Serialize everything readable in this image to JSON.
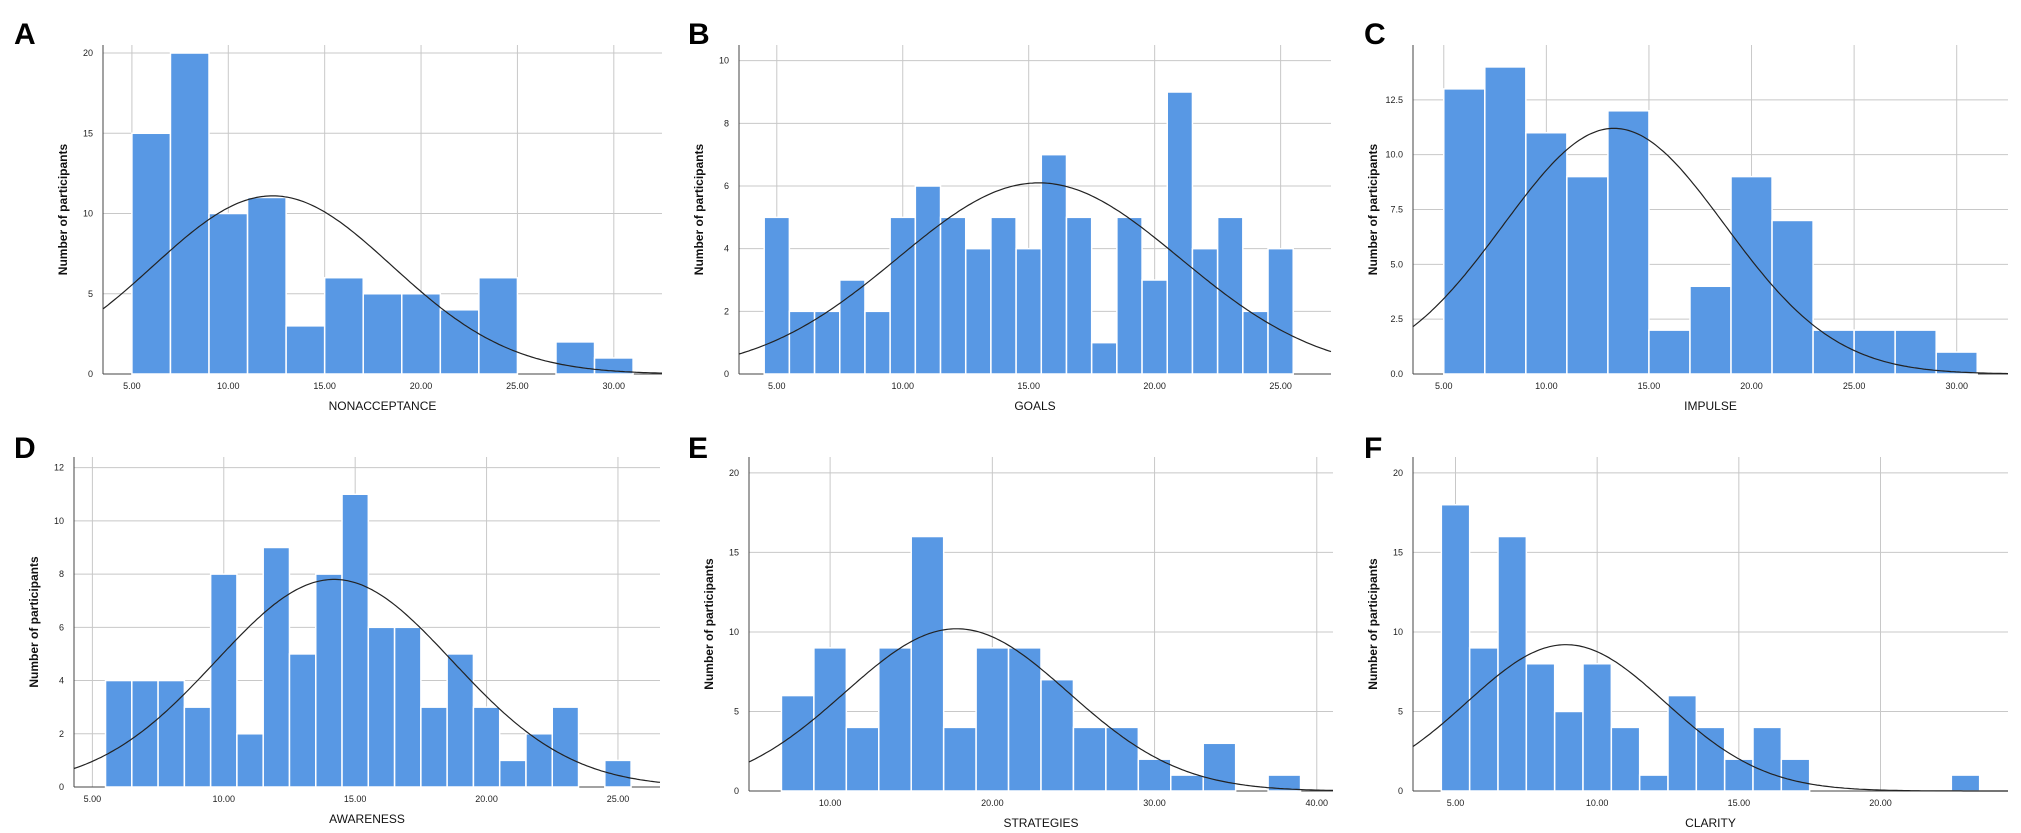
{
  "colors": {
    "bar": "#5898e4",
    "bar_edge": "#ffffff",
    "grid": "#c8c8c8",
    "curve": "#222222"
  },
  "chart_data": [
    {
      "type": "bar",
      "panel": "A",
      "xlabel": "NONACCEPTANCE",
      "ylabel": "Number of participants",
      "xlim": [
        3.5,
        32.5
      ],
      "ylim": [
        0,
        20.5
      ],
      "x_ticks": [
        {
          "v": 5,
          "label": "5.00"
        },
        {
          "v": 10,
          "label": "10.00"
        },
        {
          "v": 15,
          "label": "15.00"
        },
        {
          "v": 20,
          "label": "20.00"
        },
        {
          "v": 25,
          "label": "25.00"
        },
        {
          "v": 30,
          "label": "30.00"
        }
      ],
      "y_ticks": [
        {
          "v": 0,
          "label": "0"
        },
        {
          "v": 5,
          "label": "5"
        },
        {
          "v": 10,
          "label": "10"
        },
        {
          "v": 15,
          "label": "15"
        },
        {
          "v": 20,
          "label": "20"
        }
      ],
      "bin_start": 5.0,
      "bin_width": 2.0,
      "values": [
        15,
        20,
        10,
        11,
        3,
        6,
        5,
        5,
        4,
        6,
        0,
        2,
        1
      ],
      "normal_curve": {
        "mean": 12.3,
        "sd": 6.2,
        "peak": 11.1
      }
    },
    {
      "type": "bar",
      "panel": "B",
      "xlabel": "GOALS",
      "ylabel": "Number of participants",
      "xlim": [
        3.5,
        27.0
      ],
      "ylim": [
        0,
        10.5
      ],
      "x_ticks": [
        {
          "v": 5,
          "label": "5.00"
        },
        {
          "v": 10,
          "label": "10.00"
        },
        {
          "v": 15,
          "label": "15.00"
        },
        {
          "v": 20,
          "label": "20.00"
        },
        {
          "v": 25,
          "label": "25.00"
        }
      ],
      "y_ticks": [
        {
          "v": 0,
          "label": "0"
        },
        {
          "v": 2,
          "label": "2"
        },
        {
          "v": 4,
          "label": "4"
        },
        {
          "v": 6,
          "label": "6"
        },
        {
          "v": 8,
          "label": "8"
        },
        {
          "v": 10,
          "label": "10"
        }
      ],
      "bin_start": 4.5,
      "bin_width": 1.0,
      "values": [
        5,
        2,
        2,
        3,
        2,
        5,
        6,
        5,
        4,
        5,
        4,
        7,
        5,
        1,
        5,
        3,
        9,
        4,
        5,
        2,
        4
      ],
      "normal_curve": {
        "mean": 15.4,
        "sd": 5.6,
        "peak": 6.1
      }
    },
    {
      "type": "bar",
      "panel": "C",
      "xlabel": "IMPULSE",
      "ylabel": "Number of participants",
      "xlim": [
        3.5,
        32.5
      ],
      "ylim": [
        0,
        15.0
      ],
      "x_ticks": [
        {
          "v": 5,
          "label": "5.00"
        },
        {
          "v": 10,
          "label": "10.00"
        },
        {
          "v": 15,
          "label": "15.00"
        },
        {
          "v": 20,
          "label": "20.00"
        },
        {
          "v": 25,
          "label": "25.00"
        },
        {
          "v": 30,
          "label": "30.00"
        }
      ],
      "y_ticks": [
        {
          "v": 0,
          "label": "0.0"
        },
        {
          "v": 2.5,
          "label": "2.5"
        },
        {
          "v": 5,
          "label": "5.0"
        },
        {
          "v": 7.5,
          "label": "7.5"
        },
        {
          "v": 10,
          "label": "10.0"
        },
        {
          "v": 12.5,
          "label": "12.5"
        }
      ],
      "bin_start": 5.0,
      "bin_width": 2.0,
      "values": [
        13,
        14,
        11,
        9,
        12,
        2,
        4,
        9,
        7,
        2,
        2,
        2,
        1
      ],
      "normal_curve": {
        "mean": 13.3,
        "sd": 5.4,
        "peak": 11.2
      }
    },
    {
      "type": "bar",
      "panel": "D",
      "xlabel": "AWARENESS",
      "ylabel": "Number of participants",
      "xlim": [
        4.3,
        26.6
      ],
      "ylim": [
        0,
        12.4
      ],
      "x_ticks": [
        {
          "v": 5,
          "label": "5.00"
        },
        {
          "v": 10,
          "label": "10.00"
        },
        {
          "v": 15,
          "label": "15.00"
        },
        {
          "v": 20,
          "label": "20.00"
        },
        {
          "v": 25,
          "label": "25.00"
        }
      ],
      "y_ticks": [
        {
          "v": 0,
          "label": "0"
        },
        {
          "v": 2,
          "label": "2"
        },
        {
          "v": 4,
          "label": "4"
        },
        {
          "v": 6,
          "label": "6"
        },
        {
          "v": 8,
          "label": "8"
        },
        {
          "v": 10,
          "label": "10"
        },
        {
          "v": 12,
          "label": "12"
        }
      ],
      "bin_start": 5.5,
      "bin_width": 1.0,
      "values": [
        4,
        4,
        4,
        3,
        8,
        2,
        9,
        5,
        8,
        11,
        6,
        6,
        3,
        5,
        3,
        1,
        2,
        3,
        0,
        1
      ],
      "normal_curve": {
        "mean": 14.2,
        "sd": 4.5,
        "peak": 7.8
      }
    },
    {
      "type": "bar",
      "panel": "E",
      "xlabel": "STRATEGIES",
      "ylabel": "Number of participants",
      "xlim": [
        5.0,
        41.0
      ],
      "ylim": [
        0,
        21.0
      ],
      "x_ticks": [
        {
          "v": 10,
          "label": "10.00"
        },
        {
          "v": 20,
          "label": "20.00"
        },
        {
          "v": 30,
          "label": "30.00"
        },
        {
          "v": 40,
          "label": "40.00"
        }
      ],
      "y_ticks": [
        {
          "v": 0,
          "label": "0"
        },
        {
          "v": 5,
          "label": "5"
        },
        {
          "v": 10,
          "label": "10"
        },
        {
          "v": 15,
          "label": "15"
        },
        {
          "v": 20,
          "label": "20"
        }
      ],
      "bin_start": 7.0,
      "bin_width": 2.0,
      "values": [
        6,
        9,
        4,
        9,
        16,
        4,
        9,
        9,
        7,
        4,
        4,
        2,
        1,
        3,
        0,
        1
      ],
      "normal_curve": {
        "mean": 17.8,
        "sd": 6.9,
        "peak": 10.2
      }
    },
    {
      "type": "bar",
      "panel": "F",
      "xlabel": "CLARITY",
      "ylabel": "Number of participants",
      "xlim": [
        3.5,
        24.5
      ],
      "ylim": [
        0,
        21.0
      ],
      "x_ticks": [
        {
          "v": 5,
          "label": "5.00"
        },
        {
          "v": 10,
          "label": "10.00"
        },
        {
          "v": 15,
          "label": "15.00"
        },
        {
          "v": 20,
          "label": "20.00"
        }
      ],
      "y_ticks": [
        {
          "v": 0,
          "label": "0"
        },
        {
          "v": 5,
          "label": "5"
        },
        {
          "v": 10,
          "label": "10"
        },
        {
          "v": 15,
          "label": "15"
        },
        {
          "v": 20,
          "label": "20"
        }
      ],
      "bin_start": 4.5,
      "bin_width": 1.0,
      "values": [
        18,
        9,
        16,
        8,
        5,
        8,
        4,
        1,
        6,
        4,
        2,
        4,
        2,
        0,
        0,
        0,
        0,
        0,
        1
      ],
      "normal_curve": {
        "mean": 8.9,
        "sd": 3.5,
        "peak": 9.2
      }
    }
  ]
}
